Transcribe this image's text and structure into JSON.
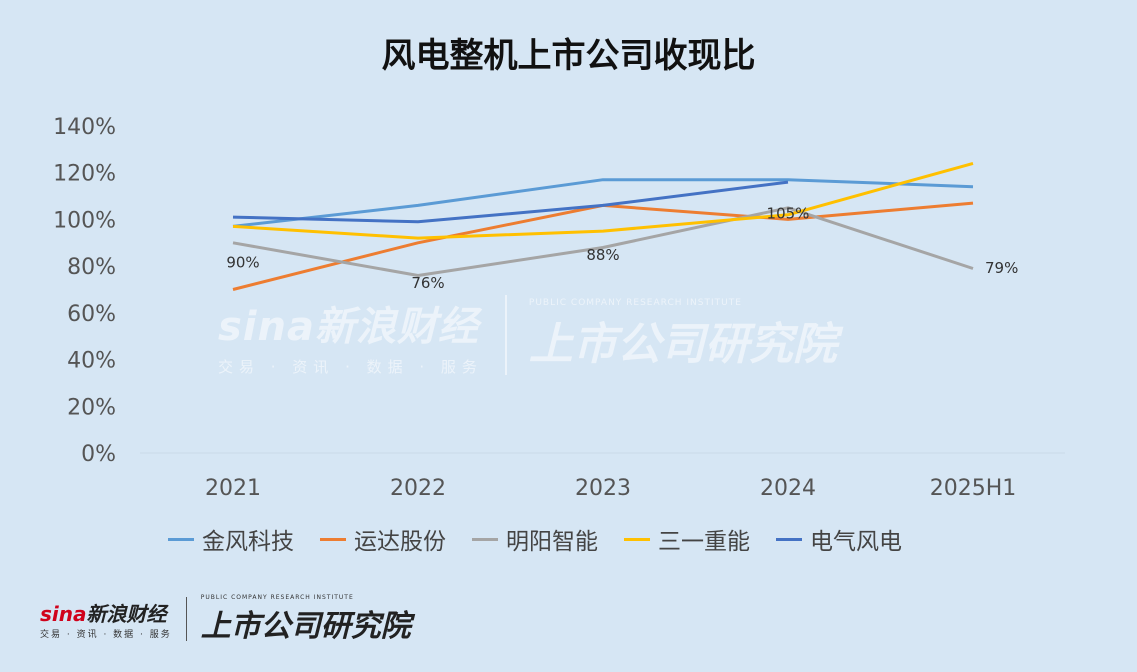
{
  "title": "风电整机上市公司收现比",
  "chart_data": {
    "type": "line",
    "title": "风电整机上市公司收现比",
    "xlabel": "",
    "ylabel": "",
    "categories": [
      "2021",
      "2022",
      "2023",
      "2024",
      "2025H1"
    ],
    "ylim": [
      0,
      140
    ],
    "yticks": [
      "0%",
      "20%",
      "40%",
      "60%",
      "80%",
      "100%",
      "120%",
      "140%"
    ],
    "grid": "horizontal",
    "legend_position": "bottom",
    "series": [
      {
        "name": "金风科技",
        "color": "#5b9bd5",
        "values": [
          97,
          106,
          117,
          117,
          114
        ]
      },
      {
        "name": "运达股份",
        "color": "#ed7d31",
        "values": [
          70,
          90,
          106,
          100,
          107
        ]
      },
      {
        "name": "明阳智能",
        "color": "#a5a5a5",
        "values": [
          90,
          76,
          88,
          105,
          79
        ],
        "labels": [
          "90%",
          "76%",
          "88%",
          "105%",
          "79%"
        ]
      },
      {
        "name": "三一重能",
        "color": "#ffc000",
        "values": [
          97,
          92,
          95,
          102,
          124
        ]
      },
      {
        "name": "电气风电",
        "color": "#4472c4",
        "values": [
          101,
          99,
          106,
          116,
          null
        ]
      }
    ]
  },
  "watermark": {
    "brand": "sina新浪财经",
    "sub": "交易 · 资讯 · 数据 · 服务",
    "institute": "上市公司研究院",
    "institute_en": "PUBLIC COMPANY RESEARCH INSTITUTE"
  },
  "footer": {
    "brand_sina": "sina",
    "brand_cn": "新浪财经",
    "sub": "交易 · 资讯 · 数据 · 服务",
    "institute": "上市公司研究院",
    "institute_en": "PUBLIC COMPANY RESEARCH INSTITUTE"
  }
}
